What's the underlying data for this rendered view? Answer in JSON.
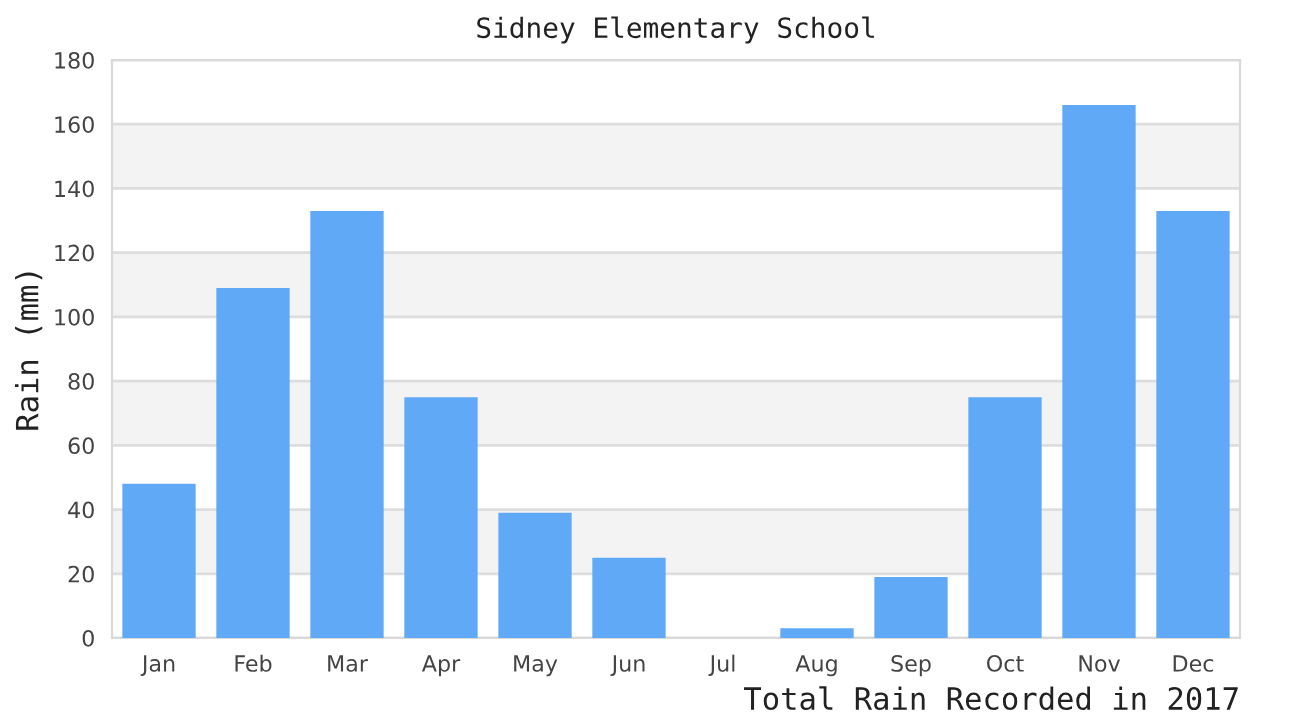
{
  "chart_data": {
    "type": "bar",
    "title": "Sidney Elementary School",
    "xlabel": "Total Rain Recorded in 2017",
    "ylabel": "Rain (mm)",
    "categories": [
      "Jan",
      "Feb",
      "Mar",
      "Apr",
      "May",
      "Jun",
      "Jul",
      "Aug",
      "Sep",
      "Oct",
      "Nov",
      "Dec"
    ],
    "values": [
      48,
      109,
      133,
      75,
      39,
      25,
      0,
      3,
      19,
      75,
      166,
      133
    ],
    "color": "#60a9f6",
    "ylim": [
      0,
      180
    ],
    "yticks": [
      0,
      20,
      40,
      60,
      80,
      100,
      120,
      140,
      160,
      180
    ],
    "grid": "y",
    "legend": false
  }
}
